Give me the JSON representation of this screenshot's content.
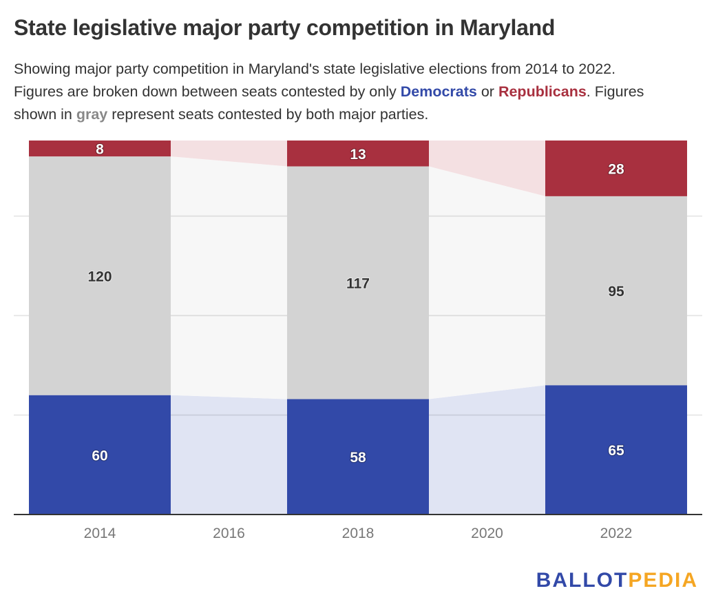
{
  "header": {
    "title": "State legislative major party competition in Maryland",
    "subtitle": {
      "line1": "Showing major party competition in Maryland's state legislative elections from 2014 to 2022.",
      "part_a": "Figures are broken down between seats contested by only ",
      "dem_word": "Democrats",
      "part_b": " or ",
      "rep_word": "Republicans",
      "part_c": ". Figures",
      "part_d": "shown in ",
      "gray_word": "gray",
      "part_e": " represent seats contested by both major parties."
    }
  },
  "colors": {
    "democrats": "#3249a8",
    "republicans": "#a8303f",
    "both": "#d3d3d3",
    "democrats_light": "#e0e4f3",
    "republicans_light": "#f4e0e2",
    "both_light": "#f7f7f7",
    "gridline": "#e6e6e6",
    "axis": "#333333",
    "logo_ballot": "#3249a8",
    "logo_pedia": "#f5a623"
  },
  "chart_data": {
    "type": "bar",
    "stacked": true,
    "title": "State legislative major party competition in Maryland",
    "xlabel": "",
    "ylabel": "",
    "categories": [
      "2014",
      "2016",
      "2018",
      "2020",
      "2022"
    ],
    "bars_present": [
      true,
      false,
      true,
      false,
      true
    ],
    "series": [
      {
        "name": "Democrats only",
        "key": "democrats",
        "values": [
          60,
          null,
          58,
          null,
          65
        ]
      },
      {
        "name": "Both major parties",
        "key": "both",
        "values": [
          120,
          null,
          117,
          null,
          95
        ]
      },
      {
        "name": "Republicans only",
        "key": "republicans",
        "values": [
          8,
          null,
          13,
          null,
          28
        ]
      }
    ],
    "ylim": [
      0,
      188
    ],
    "gridlines": [
      50,
      100,
      150
    ],
    "grid": true,
    "y_tick_labels_shown": false,
    "legend": "inline in subtitle"
  },
  "logo": {
    "ballot": "BALLOT",
    "pedia": "PEDIA"
  }
}
